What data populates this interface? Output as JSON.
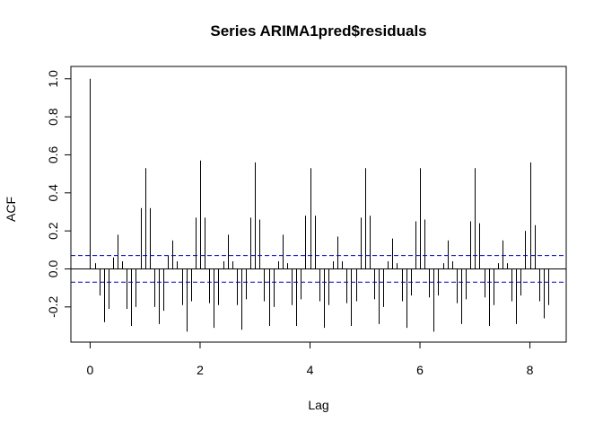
{
  "chart_data": {
    "type": "bar",
    "title": "Series  ARIMA1pred$residuals",
    "xlabel": "Lag",
    "ylabel": "ACF",
    "xlim": [
      -0.35,
      8.66
    ],
    "ylim": [
      -0.385,
      1.065
    ],
    "x_ticks": [
      0,
      2,
      4,
      6,
      8
    ],
    "y_ticks": [
      -0.2,
      0.0,
      0.2,
      0.4,
      0.6,
      0.8,
      1.0
    ],
    "x_tick_labels": [
      "0",
      "2",
      "4",
      "6",
      "8"
    ],
    "y_tick_labels": [
      "-0.2",
      "0.0",
      "0.2",
      "0.4",
      "0.6",
      "0.8",
      "1.0"
    ],
    "confidence_bound": 0.07,
    "confidence_line_color": "#0000cc",
    "bar_color": "#000000",
    "zero_line": true,
    "grid": false,
    "lags": [
      0.0,
      0.083,
      0.167,
      0.25,
      0.333,
      0.417,
      0.5,
      0.583,
      0.667,
      0.75,
      0.833,
      0.917,
      1.0,
      1.083,
      1.167,
      1.25,
      1.333,
      1.417,
      1.5,
      1.583,
      1.667,
      1.75,
      1.833,
      1.917,
      2.0,
      2.083,
      2.167,
      2.25,
      2.333,
      2.417,
      2.5,
      2.583,
      2.667,
      2.75,
      2.833,
      2.917,
      3.0,
      3.083,
      3.167,
      3.25,
      3.333,
      3.417,
      3.5,
      3.583,
      3.667,
      3.75,
      3.833,
      3.917,
      4.0,
      4.083,
      4.167,
      4.25,
      4.333,
      4.417,
      4.5,
      4.583,
      4.667,
      4.75,
      4.833,
      4.917,
      5.0,
      5.083,
      5.167,
      5.25,
      5.333,
      5.417,
      5.5,
      5.583,
      5.667,
      5.75,
      5.833,
      5.917,
      6.0,
      6.083,
      6.167,
      6.25,
      6.333,
      6.417,
      6.5,
      6.583,
      6.667,
      6.75,
      6.833,
      6.917,
      7.0,
      7.083,
      7.167,
      7.25,
      7.333,
      7.417,
      7.5,
      7.583,
      7.667,
      7.75,
      7.833,
      7.917,
      8.0,
      8.083,
      8.167,
      8.25,
      8.333
    ],
    "acf": [
      1.0,
      0.03,
      -0.14,
      -0.28,
      -0.21,
      0.06,
      0.18,
      0.04,
      -0.21,
      -0.3,
      -0.2,
      0.32,
      0.53,
      0.32,
      -0.2,
      -0.29,
      -0.22,
      0.07,
      0.15,
      0.04,
      -0.19,
      -0.33,
      -0.17,
      0.27,
      0.57,
      0.27,
      -0.18,
      -0.31,
      -0.19,
      0.04,
      0.18,
      0.04,
      -0.19,
      -0.32,
      -0.16,
      0.27,
      0.56,
      0.26,
      -0.17,
      -0.3,
      -0.2,
      0.04,
      0.18,
      0.03,
      -0.19,
      -0.3,
      -0.16,
      0.28,
      0.53,
      0.28,
      -0.17,
      -0.31,
      -0.19,
      0.04,
      0.17,
      0.04,
      -0.18,
      -0.3,
      -0.17,
      0.27,
      0.53,
      0.28,
      -0.16,
      -0.29,
      -0.2,
      0.04,
      0.16,
      0.03,
      -0.17,
      -0.31,
      -0.14,
      0.25,
      0.53,
      0.26,
      -0.15,
      -0.33,
      -0.14,
      0.03,
      0.15,
      0.04,
      -0.18,
      -0.29,
      -0.16,
      0.25,
      0.53,
      0.24,
      -0.15,
      -0.3,
      -0.19,
      0.03,
      0.15,
      0.03,
      -0.17,
      -0.29,
      -0.14,
      0.2,
      0.56,
      0.23,
      -0.17,
      -0.26,
      -0.19
    ]
  }
}
